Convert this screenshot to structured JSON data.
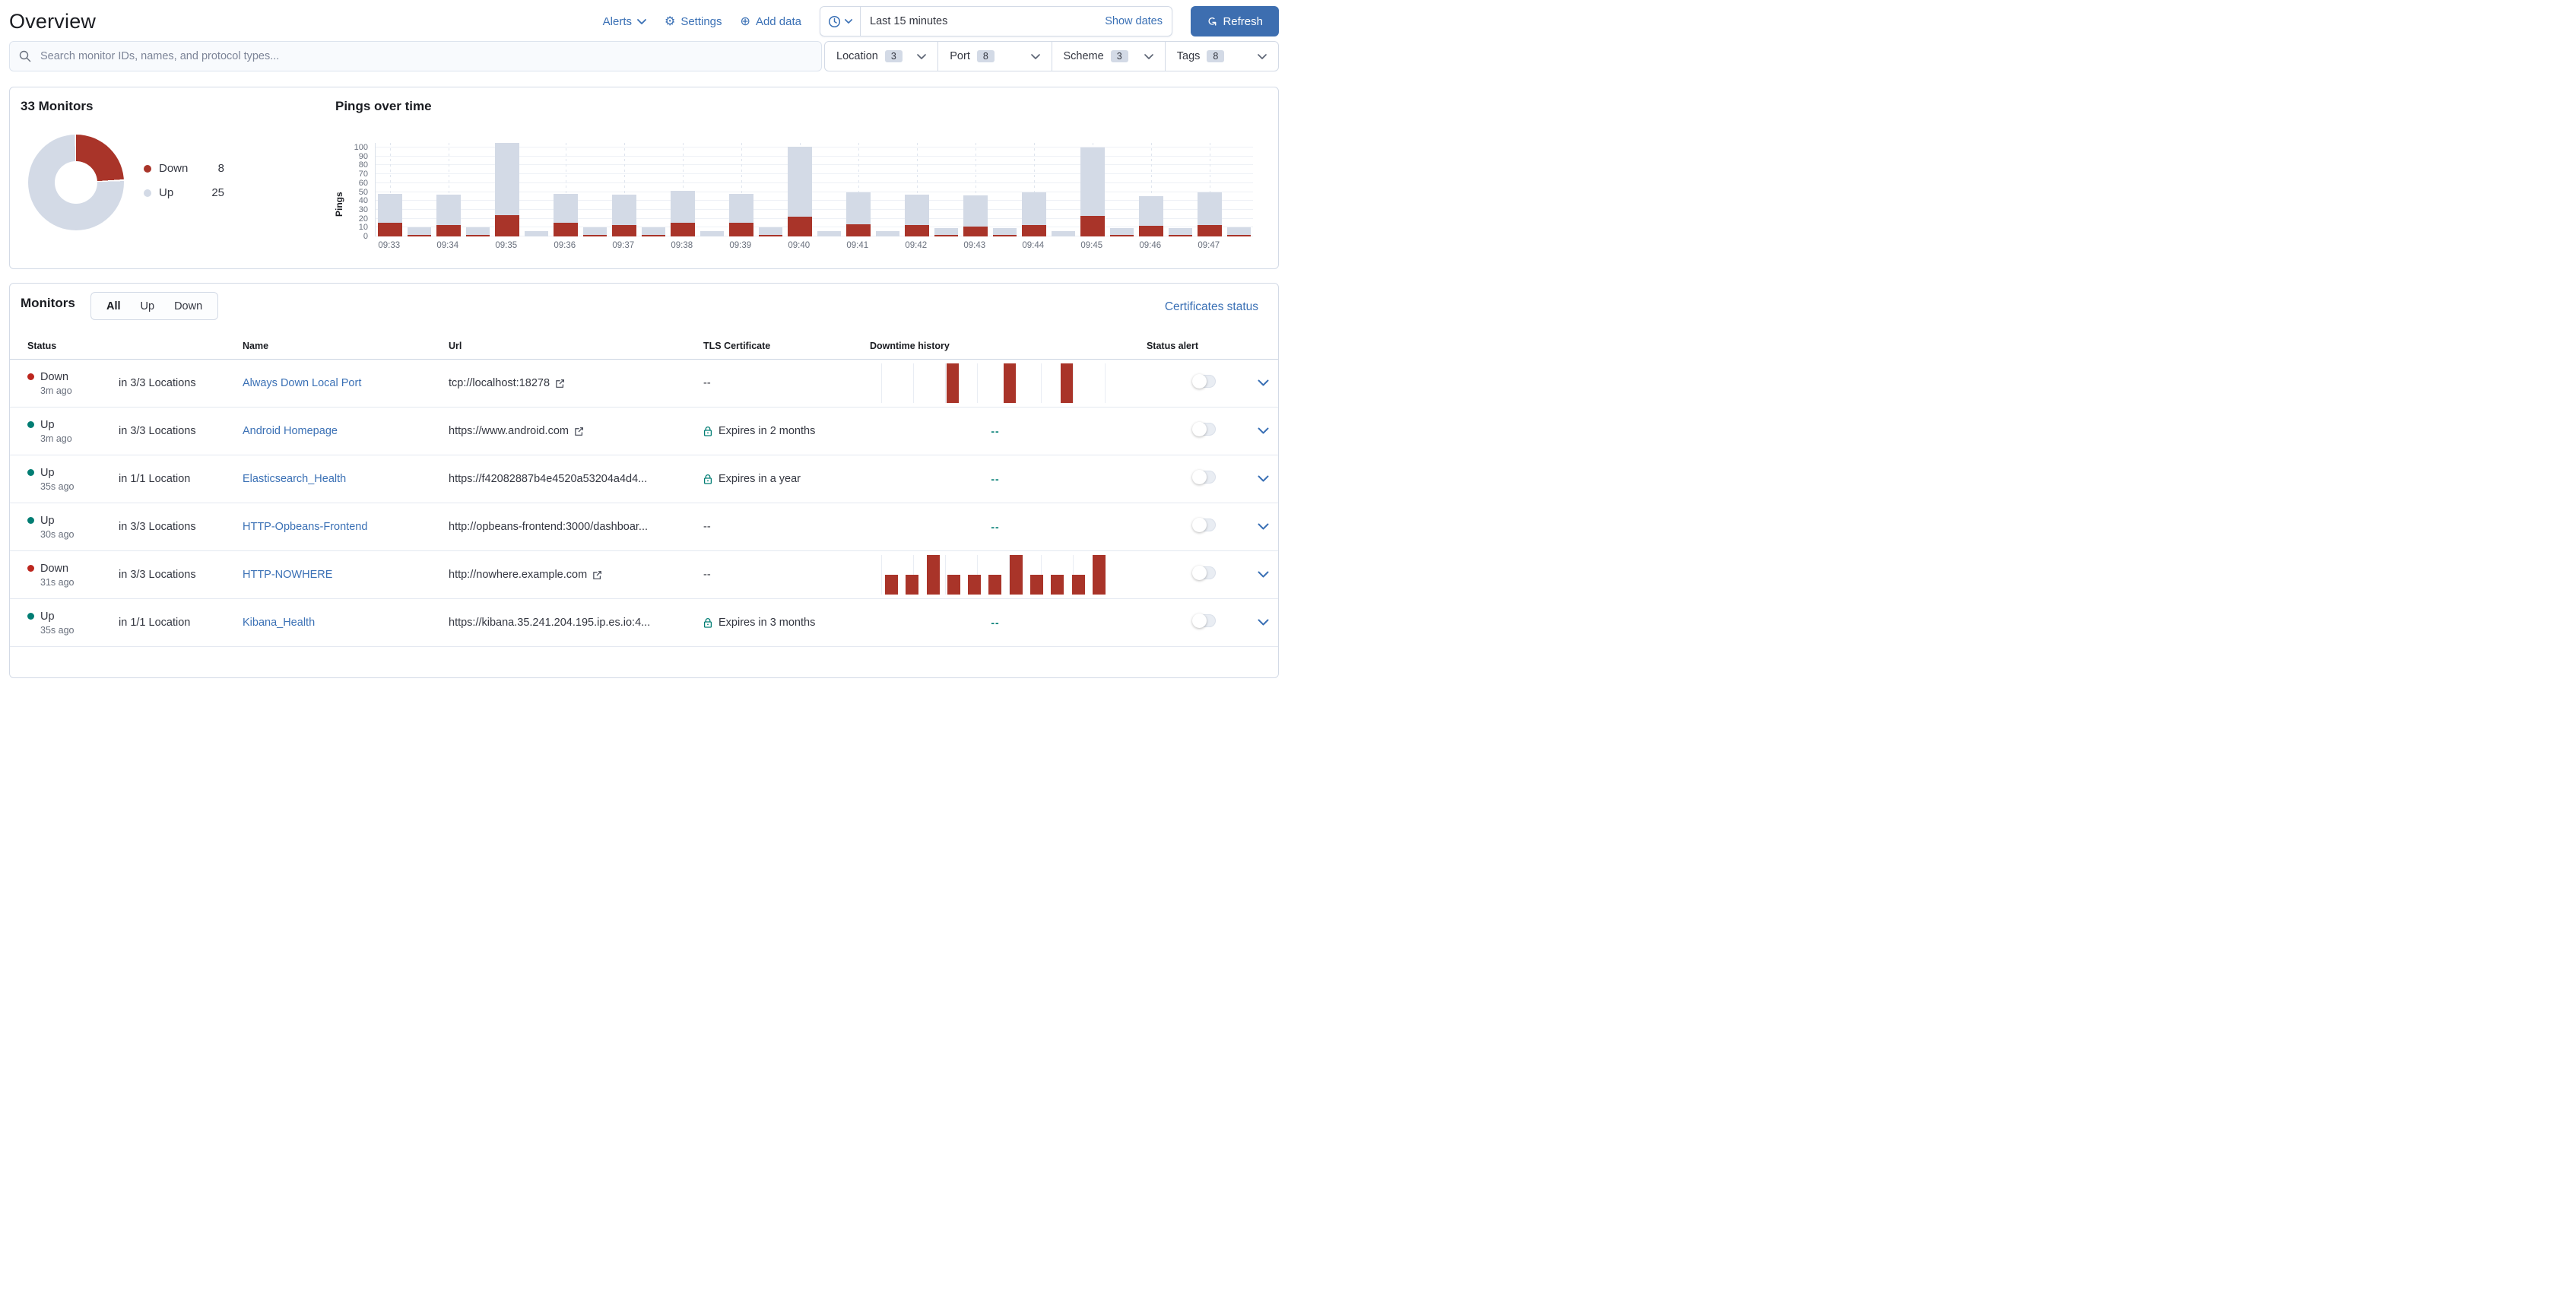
{
  "header": {
    "title": "Overview",
    "alerts_label": "Alerts",
    "settings_label": "Settings",
    "add_data_label": "Add data",
    "time_range": "Last 15 minutes",
    "show_dates_label": "Show dates",
    "refresh_label": "Refresh"
  },
  "search": {
    "placeholder": "Search monitor IDs, names, and protocol types..."
  },
  "filters": [
    {
      "label": "Location",
      "count": "3"
    },
    {
      "label": "Port",
      "count": "8"
    },
    {
      "label": "Scheme",
      "count": "3"
    },
    {
      "label": "Tags",
      "count": "8"
    }
  ],
  "snapshot": {
    "title": "33 Monitors",
    "legend": [
      {
        "label": "Down",
        "value": "8",
        "color": "#a93429"
      },
      {
        "label": "Up",
        "value": "25",
        "color": "#d3dae6"
      }
    ]
  },
  "chart_data": {
    "type": "bar",
    "stacked": true,
    "title": "Pings over time",
    "ylabel": "Pings",
    "ylim": [
      0,
      100
    ],
    "yticks": [
      0,
      10,
      20,
      30,
      40,
      50,
      60,
      70,
      80,
      90,
      100
    ],
    "x_labels": [
      "09:33",
      "09:34",
      "09:35",
      "09:36",
      "09:37",
      "09:38",
      "09:39",
      "09:40",
      "09:41",
      "09:42",
      "09:43",
      "09:44",
      "09:45",
      "09:46",
      "09:47"
    ],
    "legend_position": "none",
    "grid": true,
    "series": [
      {
        "name": "Down",
        "color": "#a93429",
        "values": [
          15,
          2,
          13,
          2,
          24,
          0,
          15,
          2,
          13,
          2,
          15,
          0,
          15,
          2,
          22,
          0,
          14,
          0,
          13,
          2,
          11,
          2,
          13,
          0,
          23,
          2,
          12,
          2,
          13,
          2
        ]
      },
      {
        "name": "Up",
        "color": "#d3dae6",
        "values": [
          33,
          8,
          34,
          8,
          81,
          6,
          33,
          8,
          34,
          8,
          36,
          6,
          33,
          8,
          79,
          6,
          36,
          6,
          34,
          7,
          35,
          7,
          37,
          6,
          77,
          7,
          33,
          7,
          37,
          8
        ]
      }
    ]
  },
  "monitors": {
    "heading": "Monitors",
    "tabs": [
      "All",
      "Up",
      "Down"
    ],
    "selected_tab": "All",
    "certificates_link": "Certificates status",
    "columns": [
      "Status",
      "Name",
      "Url",
      "TLS Certificate",
      "Downtime history",
      "Status alert"
    ],
    "rows": [
      {
        "status": "Down",
        "kind": "down",
        "ago": "3m ago",
        "locations": "in 3/3 Locations",
        "name": "Always Down Local Port",
        "url": "tcp://localhost:18278",
        "external_link": true,
        "tls": "--",
        "tls_secure": false,
        "downtime_text": "--",
        "downtime_bars": [
          0,
          0,
          4,
          0,
          4,
          0,
          4,
          0
        ],
        "alert_enabled": false
      },
      {
        "status": "Up",
        "kind": "up",
        "ago": "3m ago",
        "locations": "in 3/3 Locations",
        "name": "Android Homepage",
        "url": "https://www.android.com",
        "external_link": true,
        "tls": "Expires in 2 months",
        "tls_secure": true,
        "downtime_text": "--",
        "downtime_bars": null,
        "alert_enabled": false
      },
      {
        "status": "Up",
        "kind": "up",
        "ago": "35s ago",
        "locations": "in 1/1 Location",
        "name": "Elasticsearch_Health",
        "url": "https://f42082887b4e4520a53204a4d4...",
        "external_link": false,
        "tls": "Expires in a year",
        "tls_secure": true,
        "downtime_text": "--",
        "downtime_bars": null,
        "alert_enabled": false
      },
      {
        "status": "Up",
        "kind": "up",
        "ago": "30s ago",
        "locations": "in 3/3 Locations",
        "name": "HTTP-Opbeans-Frontend",
        "url": "http://opbeans-frontend:3000/dashboar...",
        "external_link": false,
        "tls": "--",
        "tls_secure": false,
        "downtime_text": "--",
        "downtime_bars": null,
        "alert_enabled": false
      },
      {
        "status": "Down",
        "kind": "down",
        "ago": "31s ago",
        "locations": "in 3/3 Locations",
        "name": "HTTP-NOWHERE",
        "url": "http://nowhere.example.com",
        "external_link": true,
        "tls": "--",
        "tls_secure": false,
        "downtime_text": "--",
        "downtime_bars": [
          2,
          2,
          4,
          2,
          2,
          2,
          4,
          2,
          2,
          2,
          4
        ],
        "alert_enabled": false
      },
      {
        "status": "Up",
        "kind": "up",
        "ago": "35s ago",
        "locations": "in 1/1 Location",
        "name": "Kibana_Health",
        "url": "https://kibana.35.241.204.195.ip.es.io:4...",
        "external_link": false,
        "tls": "Expires in 3 months",
        "tls_secure": true,
        "downtime_text": "--",
        "downtime_bars": null,
        "alert_enabled": false
      }
    ]
  },
  "colors": {
    "accent_blue": "#3a70b5",
    "button_blue": "#3d6eb0",
    "danger_red": "#bc261e",
    "success_teal": "#017d73",
    "chart_down_red": "#a93429",
    "chart_up_gray": "#d3dae6"
  }
}
